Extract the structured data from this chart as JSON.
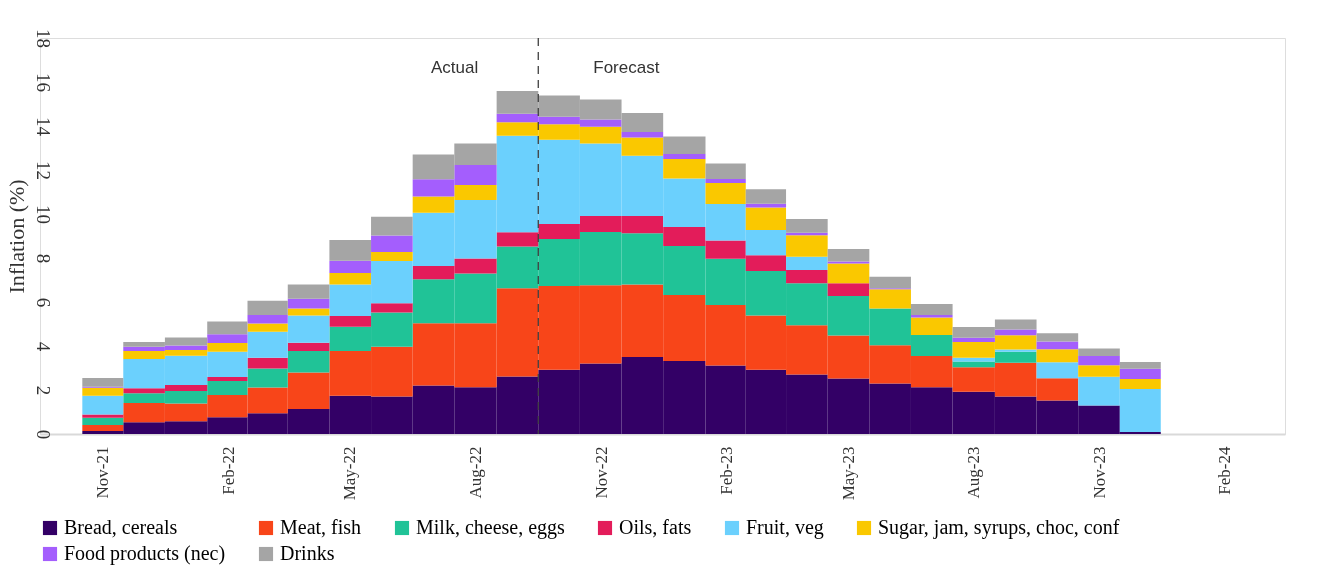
{
  "chart_data": {
    "type": "bar",
    "stacked": true,
    "ylabel": "Inflation (%)",
    "x": [
      "2021-11",
      "2021-12",
      "2022-01",
      "2022-02",
      "2022-03",
      "2022-04",
      "2022-05",
      "2022-06",
      "2022-07",
      "2022-08",
      "2022-09",
      "2022-10",
      "2022-11",
      "2022-12",
      "2023-01",
      "2023-02",
      "2023-03",
      "2023-04",
      "2023-05",
      "2023-06",
      "2023-07",
      "2023-08",
      "2023-09",
      "2023-10",
      "2023-11",
      "2023-12"
    ],
    "xlim": [
      "2021-09-16",
      "2024-03-16"
    ],
    "xticks": [
      {
        "value": "2021-11",
        "label": "Nov-21"
      },
      {
        "value": "2022-02",
        "label": "Feb-22"
      },
      {
        "value": "2022-05",
        "label": "May-22"
      },
      {
        "value": "2022-08",
        "label": "Aug-22"
      },
      {
        "value": "2022-11",
        "label": "Nov-22"
      },
      {
        "value": "2023-02",
        "label": "Feb-23"
      },
      {
        "value": "2023-05",
        "label": "May-23"
      },
      {
        "value": "2023-08",
        "label": "Aug-23"
      },
      {
        "value": "2023-11",
        "label": "Nov-23"
      },
      {
        "value": "2024-02",
        "label": "Feb-24"
      }
    ],
    "ylim": [
      0,
      18
    ],
    "yticks": [
      0,
      2,
      4,
      6,
      8,
      10,
      12,
      14,
      16,
      18
    ],
    "grid": false,
    "legend": "bottom",
    "series": [
      {
        "name": "Bread, cereals",
        "color": "#330066",
        "values": [
          0.14,
          0.53,
          0.58,
          0.76,
          0.94,
          1.14,
          1.74,
          1.7,
          2.2,
          2.12,
          2.61,
          2.92,
          3.21,
          3.5,
          3.32,
          3.11,
          2.92,
          2.71,
          2.52,
          2.3,
          2.12,
          1.92,
          1.7,
          1.52,
          1.29,
          0.09
        ]
      },
      {
        "name": "Meat, fish",
        "color": "#f84519",
        "values": [
          0.27,
          0.88,
          0.81,
          1.01,
          1.17,
          1.66,
          2.03,
          2.27,
          2.83,
          2.91,
          4.01,
          3.81,
          3.55,
          3.29,
          3.0,
          2.75,
          2.47,
          2.23,
          1.96,
          1.73,
          1.43,
          1.11,
          1.54,
          1.01,
          0,
          0
        ]
      },
      {
        "name": "Milk, cheese, eggs",
        "color": "#20c397",
        "values": [
          0.33,
          0.44,
          0.56,
          0.64,
          0.87,
          0.97,
          1.11,
          1.55,
          2.0,
          2.27,
          1.9,
          2.13,
          2.42,
          2.33,
          2.23,
          2.11,
          2.02,
          1.91,
          1.79,
          1.67,
          0.95,
          0.26,
          0.5,
          0,
          0,
          0
        ]
      },
      {
        "name": "Oils, fats",
        "color": "#e31c5a",
        "values": [
          0.15,
          0.23,
          0.28,
          0.18,
          0.49,
          0.38,
          0.48,
          0.42,
          0.61,
          0.68,
          0.65,
          0.69,
          0.73,
          0.79,
          0.86,
          0.82,
          0.71,
          0.6,
          0.58,
          0,
          0,
          0,
          0,
          0,
          0,
          0
        ]
      },
      {
        "name": "Fruit, veg",
        "color": "#6bd0fd",
        "values": [
          0.85,
          1.33,
          1.33,
          1.15,
          1.18,
          1.24,
          1.43,
          1.92,
          2.42,
          2.66,
          4.39,
          3.83,
          3.3,
          2.74,
          2.2,
          1.66,
          1.15,
          0.61,
          null,
          0,
          0,
          0.18,
          0.1,
          0.73,
          1.31,
          1.95
        ]
      },
      {
        "name": "Sugar, jam, syrups, choc, conf",
        "color": "#fac800",
        "values": [
          0.36,
          0.36,
          0.26,
          0.4,
          0.37,
          0.31,
          0.53,
          0.41,
          0.73,
          0.68,
          0.61,
          0.7,
          0.76,
          0.83,
          0.89,
          0.96,
          1.03,
          0.97,
          0.9,
          0.88,
          0.79,
          0.71,
          0.65,
          0.59,
          0.53,
          0.46
        ]
      },
      {
        "name": "Food products (nec)",
        "color": "#a45efd",
        "values": [
          0.05,
          0.2,
          0.2,
          0.39,
          0.39,
          0.45,
          0.56,
          0.75,
          0.79,
          0.91,
          0.39,
          0.34,
          0.32,
          0.25,
          0.23,
          0.18,
          0.17,
          0.12,
          0.09,
          0.04,
          0.12,
          0.2,
          0.26,
          0.35,
          0.41,
          0.47
        ]
      },
      {
        "name": "Drinks",
        "color": "#a5a5a5",
        "values": [
          0.4,
          0.21,
          0.37,
          0.58,
          0.65,
          0.65,
          0.94,
          0.86,
          1.12,
          0.98,
          1.03,
          0.97,
          0.91,
          0.86,
          0.79,
          0.71,
          0.65,
          0.62,
          0.57,
          0.53,
          0.5,
          0.48,
          0.46,
          0.38,
          0.35,
          0.3
        ]
      }
    ],
    "ref_lines": [
      {
        "axis": "x",
        "value": "2022-09-16",
        "color": "#404040",
        "line_style": "dashed"
      }
    ],
    "annotations": [
      "Actual",
      "Forecast"
    ]
  }
}
